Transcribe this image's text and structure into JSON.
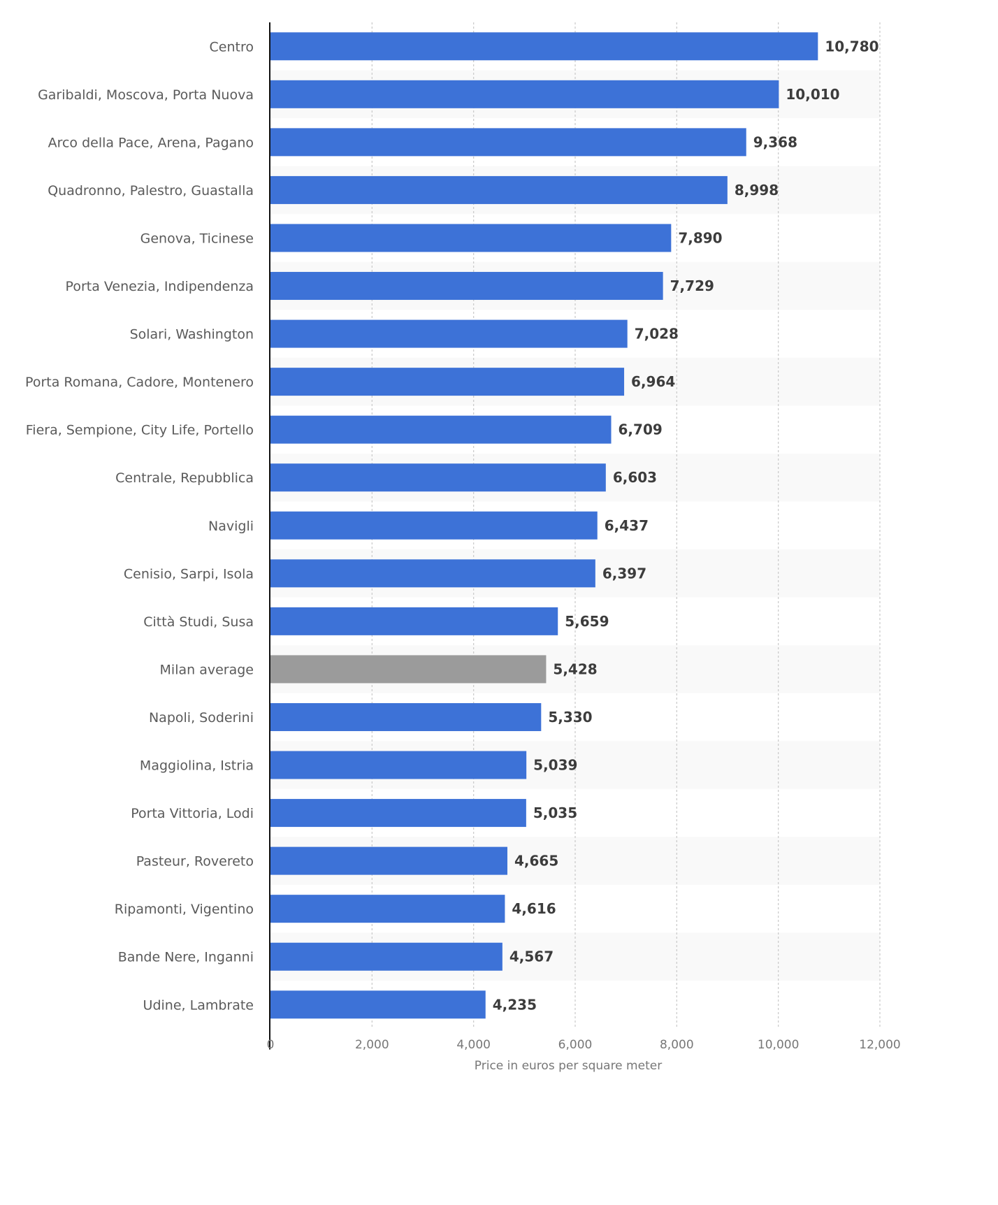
{
  "chart_data": {
    "type": "bar",
    "orientation": "horizontal",
    "title": "",
    "xlabel": "Price in euros per square meter",
    "ylabel": "",
    "xlim": [
      0,
      12000
    ],
    "ticks": [
      0,
      2000,
      4000,
      6000,
      8000,
      10000,
      12000
    ],
    "tick_labels": [
      "0",
      "2,000",
      "4,000",
      "6,000",
      "8,000",
      "10,000",
      "12,000"
    ],
    "grid": true,
    "legend": null,
    "colors": {
      "default": "#3d72d7",
      "highlight": "#9b9b9b",
      "row_stripe": "#f9f9f9",
      "axis": "#111111",
      "grid": "#c8c8c8"
    },
    "categories": [
      "Centro",
      "Garibaldi, Moscova, Porta Nuova",
      "Arco della Pace, Arena, Pagano",
      "Quadronno, Palestro, Guastalla",
      "Genova, Ticinese",
      "Porta Venezia, Indipendenza",
      "Solari, Washington",
      "Porta Romana, Cadore, Montenero",
      "Fiera, Sempione, City Life, Portello",
      "Centrale, Repubblica",
      "Navigli",
      "Cenisio, Sarpi, Isola",
      "Città Studi, Susa",
      "Milan average",
      "Napoli, Soderini",
      "Maggiolina, Istria",
      "Porta Vittoria, Lodi",
      "Pasteur, Rovereto",
      "Ripamonti, Vigentino",
      "Bande Nere, Inganni",
      "Udine, Lambrate"
    ],
    "values": [
      10780,
      10010,
      9368,
      8998,
      7890,
      7729,
      7028,
      6964,
      6709,
      6603,
      6437,
      6397,
      5659,
      5428,
      5330,
      5039,
      5035,
      4665,
      4616,
      4567,
      4235
    ],
    "value_labels": [
      "10,780",
      "10,010",
      "9,368",
      "8,998",
      "7,890",
      "7,729",
      "7,028",
      "6,964",
      "6,709",
      "6,603",
      "6,437",
      "6,397",
      "5,659",
      "5,428",
      "5,330",
      "5,039",
      "5,035",
      "4,665",
      "4,616",
      "4,567",
      "4,235"
    ],
    "highlighted": [
      "Milan average"
    ]
  }
}
